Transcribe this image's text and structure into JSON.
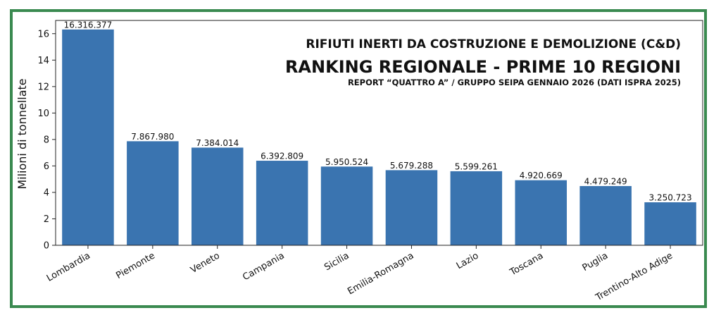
{
  "chart_data": {
    "type": "bar",
    "title": "RIFIUTI INERTI DA COSTRUZIONE E DEMOLIZIONE (C&D)",
    "subtitle": "RANKING REGIONALE - PRIME 10 REGIONI",
    "note": "REPORT “QUATTRO A” / GRUPPO SEIPA GENNAIO 2026 (DATI ISPRA 2025)",
    "xlabel": "",
    "ylabel": "Milioni di tonnellate",
    "ylim": [
      0,
      17
    ],
    "yticks": [
      "0",
      "2",
      "4",
      "6",
      "8",
      "10",
      "12",
      "14",
      "16"
    ],
    "ytick_values": [
      0,
      2,
      4,
      6,
      8,
      10,
      12,
      14,
      16
    ],
    "categories": [
      "Lombardia",
      "Piemonte",
      "Veneto",
      "Campania",
      "Sicilia",
      "Emilia-Romagna",
      "Lazio",
      "Toscana",
      "Puglia",
      "Trentino-Alto Adige"
    ],
    "values": [
      16.316377,
      7.86798,
      7.384014,
      6.392809,
      5.950524,
      5.679288,
      5.599261,
      4.920669,
      4.479249,
      3.250723
    ],
    "data_labels": [
      "16.316.377",
      "7.867.980",
      "7.384.014",
      "6.392.809",
      "5.950.524",
      "5.679.288",
      "5.599.261",
      "4.920.669",
      "4.479.249",
      "3.250.723"
    ],
    "bar_color": "#3a74b0",
    "frame_color": "#3a8a50",
    "grid": false,
    "legend": "none"
  }
}
